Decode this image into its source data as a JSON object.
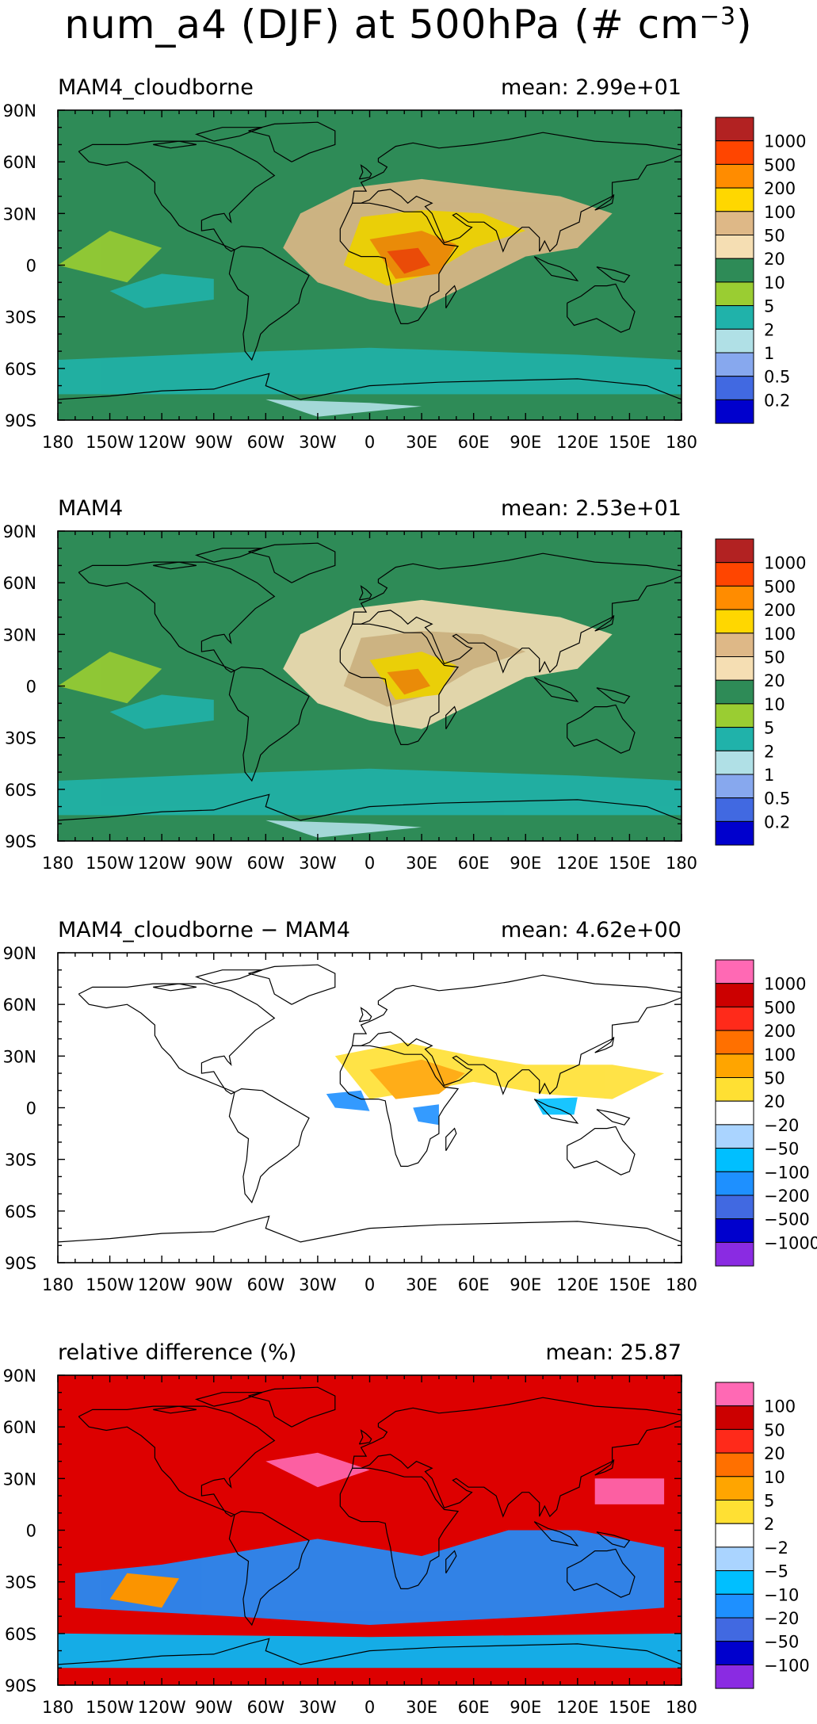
{
  "title": {
    "main": "num_a4 (DJF) at 500hPa (# cm",
    "exponent": "−3",
    "close": ")"
  },
  "axes": {
    "lat_labels": [
      "90N",
      "60N",
      "30N",
      "0",
      "30S",
      "60S",
      "90S"
    ],
    "lon_labels": [
      "180",
      "150W",
      "120W",
      "90W",
      "60W",
      "30W",
      "0",
      "30E",
      "60E",
      "90E",
      "120E",
      "150E",
      "180"
    ]
  },
  "panels": [
    {
      "label": "MAM4_cloudborne",
      "mean": "mean: 2.99e+01",
      "background": "#2e8b57",
      "legend": {
        "labels": [
          "1000",
          "500",
          "200",
          "100",
          "50",
          "20",
          "10",
          "5",
          "2",
          "1",
          "0.5",
          "0.2"
        ],
        "colors": [
          "#b22222",
          "#ff4500",
          "#ff8c00",
          "#ffd700",
          "#deb887",
          "#f5deb3",
          "#2e8b57",
          "#9acd32",
          "#20b2aa",
          "#b0e0e6",
          "#87a8ee",
          "#4169e1",
          "#0000cd"
        ]
      }
    },
    {
      "label": "MAM4",
      "mean": "mean: 2.53e+01",
      "background": "#2e8b57",
      "legend": {
        "labels": [
          "1000",
          "500",
          "200",
          "100",
          "50",
          "20",
          "10",
          "5",
          "2",
          "1",
          "0.5",
          "0.2"
        ],
        "colors": [
          "#b22222",
          "#ff4500",
          "#ff8c00",
          "#ffd700",
          "#deb887",
          "#f5deb3",
          "#2e8b57",
          "#9acd32",
          "#20b2aa",
          "#b0e0e6",
          "#87a8ee",
          "#4169e1",
          "#0000cd"
        ]
      }
    },
    {
      "label": "MAM4_cloudborne − MAM4",
      "mean": "mean: 4.62e+00",
      "background": "#ffffff",
      "legend": {
        "labels": [
          "1000",
          "500",
          "200",
          "100",
          "50",
          "20",
          "−20",
          "−50",
          "−100",
          "−200",
          "−500",
          "−1000"
        ],
        "colors": [
          "#ff69b4",
          "#cc0000",
          "#ff2a1a",
          "#ff7000",
          "#ffa500",
          "#ffe033",
          "#ffffff",
          "#aad4ff",
          "#00bfff",
          "#1e90ff",
          "#4169e1",
          "#0000cd",
          "#8a2be2"
        ]
      }
    },
    {
      "label": "relative difference (%)",
      "mean": "mean: 25.87",
      "background": "#dd0000",
      "legend": {
        "labels": [
          "100",
          "50",
          "20",
          "10",
          "5",
          "2",
          "−2",
          "−5",
          "−10",
          "−20",
          "−50",
          "−100"
        ],
        "colors": [
          "#ff69b4",
          "#cc0000",
          "#ff2a1a",
          "#ff7000",
          "#ffa500",
          "#ffe033",
          "#ffffff",
          "#aad4ff",
          "#00bfff",
          "#1e90ff",
          "#4169e1",
          "#0000cd",
          "#8a2be2"
        ]
      }
    }
  ]
}
